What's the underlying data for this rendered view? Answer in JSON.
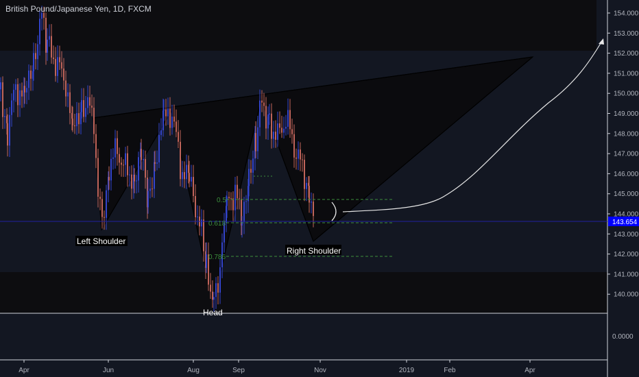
{
  "header": {
    "title": "British Pound/Japanese Yen, 1D, FXCM"
  },
  "price_tag": {
    "value": "143.654",
    "color": "#0000ff"
  },
  "colors": {
    "bull": "#3344cc",
    "bear": "#c0645a",
    "background": "#131722",
    "pattern_fill": "#0c0c10",
    "price_line": "#2020a0"
  },
  "chart_data": {
    "type": "candlestick",
    "title": "British Pound/Japanese Yen, 1D, FXCM",
    "x_ticks": [
      "Apr",
      "Jun",
      "Aug",
      "Sep",
      "Nov",
      "2019",
      "Feb",
      "Apr"
    ],
    "y_ticks": [
      "154.000",
      "153.000",
      "152.000",
      "151.000",
      "150.000",
      "149.000",
      "148.000",
      "147.000",
      "146.000",
      "145.000",
      "144.000",
      "143.000",
      "142.000",
      "141.000",
      "140.000"
    ],
    "indicator_pane_tick": "0.0000",
    "ylim": [
      139.6,
      154.5
    ],
    "current_price": 143.654,
    "pattern": {
      "type": "head-and-shoulders (inverse)",
      "labels": {
        "left_shoulder": "Left Shoulder",
        "head": "Head",
        "right_shoulder": "Right Shoulder"
      },
      "points": [
        {
          "name": "neckline-left",
          "date": "May 28",
          "price": 148.8
        },
        {
          "name": "left-shoulder",
          "date": "Jun 1",
          "price": 143.2
        },
        {
          "name": "neckline-mid",
          "date": "Jul 10",
          "price": 149.2
        },
        {
          "name": "head",
          "date": "Aug 15",
          "price": 139.7
        },
        {
          "name": "neckline-right",
          "date": "Sep 20",
          "price": 149.9
        },
        {
          "name": "right-shoulder",
          "date": "Oct 30",
          "price": 142.7
        },
        {
          "name": "target",
          "date": "Mar 15",
          "price": 152.0
        }
      ]
    },
    "fibonacci": [
      {
        "label": "0.5",
        "price": 144.8
      },
      {
        "label": "0.618",
        "price": 143.6
      },
      {
        "label": "0.786",
        "price": 142.0
      }
    ],
    "projection": {
      "start_price": 144.1,
      "end_price": 152.3,
      "end_date": "Apr"
    }
  }
}
